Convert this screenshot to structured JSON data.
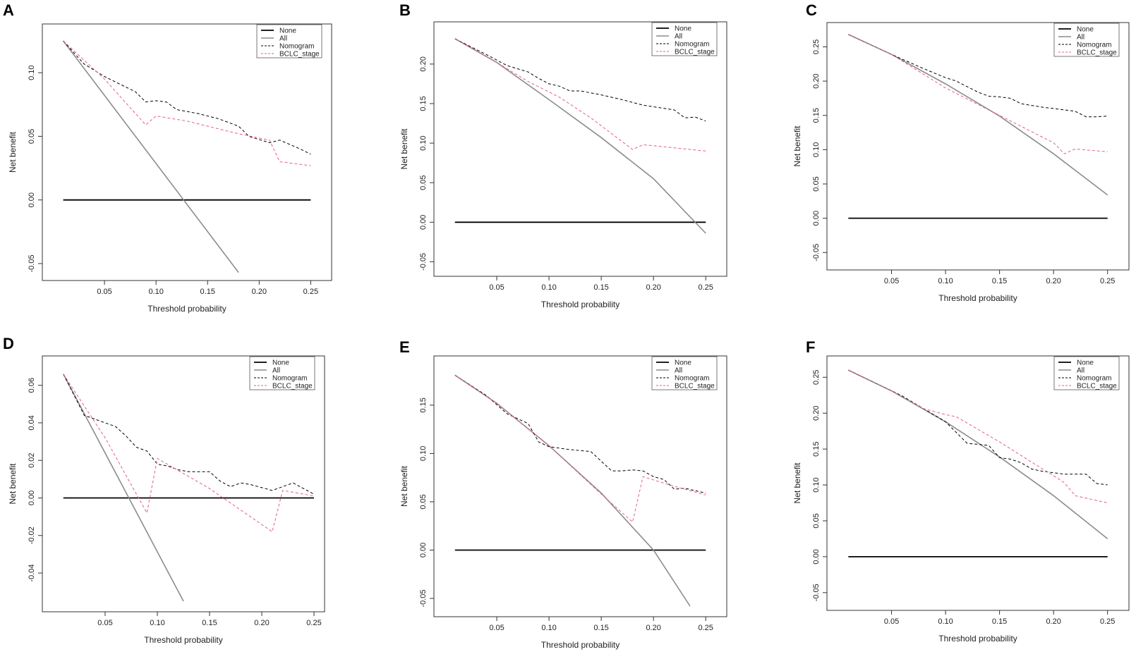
{
  "legend_labels": [
    "None",
    "All",
    "Nomogram",
    "BCLC_stage"
  ],
  "colors": {
    "none": "#000000",
    "all": "#8c8c8c",
    "nomogram": "#000000",
    "bclc": "#e8607a"
  },
  "chart_data": [
    {
      "panel": "A",
      "type": "line",
      "xlabel": "Threshold probability",
      "ylabel": "Net benefit",
      "xlim": [
        0.0,
        0.26
      ],
      "ylim": [
        -0.055,
        0.13
      ],
      "xticks": [
        "0.05",
        "0.10",
        "0.15",
        "0.20",
        "0.25"
      ],
      "yticks": [
        "-0.05",
        "0.00",
        "0.05",
        "0.10"
      ],
      "series": [
        {
          "name": "None",
          "x": [
            0.01,
            0.25
          ],
          "y": [
            0.0,
            0.0
          ]
        },
        {
          "name": "All",
          "x": [
            0.01,
            0.18
          ],
          "y": [
            0.125,
            -0.057
          ]
        },
        {
          "name": "Nomogram",
          "x": [
            0.01,
            0.03,
            0.05,
            0.07,
            0.08,
            0.09,
            0.1,
            0.11,
            0.12,
            0.14,
            0.16,
            0.18,
            0.19,
            0.21,
            0.22,
            0.24,
            0.25
          ],
          "y": [
            0.125,
            0.107,
            0.097,
            0.089,
            0.085,
            0.077,
            0.078,
            0.077,
            0.071,
            0.068,
            0.064,
            0.058,
            0.05,
            0.045,
            0.047,
            0.04,
            0.036
          ]
        },
        {
          "name": "BCLC_stage",
          "x": [
            0.01,
            0.05,
            0.09,
            0.1,
            0.13,
            0.18,
            0.21,
            0.22,
            0.25
          ],
          "y": [
            0.125,
            0.095,
            0.059,
            0.066,
            0.062,
            0.052,
            0.047,
            0.03,
            0.027
          ]
        }
      ]
    },
    {
      "panel": "B",
      "type": "line",
      "xlabel": "Threshold probability",
      "ylabel": "Net benefit",
      "xlim": [
        0.0,
        0.26
      ],
      "ylim": [
        -0.055,
        0.24
      ],
      "xticks": [
        "0.05",
        "0.10",
        "0.15",
        "0.20",
        "0.25"
      ],
      "yticks": [
        "-0.05",
        "0.00",
        "0.05",
        "0.10",
        "0.15",
        "0.20"
      ],
      "series": [
        {
          "name": "None",
          "x": [
            0.01,
            0.25
          ],
          "y": [
            0.0,
            0.0
          ]
        },
        {
          "name": "All",
          "x": [
            0.01,
            0.05,
            0.1,
            0.15,
            0.2,
            0.25
          ],
          "y": [
            0.232,
            0.202,
            0.155,
            0.107,
            0.055,
            -0.014
          ]
        },
        {
          "name": "Nomogram",
          "x": [
            0.01,
            0.04,
            0.06,
            0.08,
            0.09,
            0.1,
            0.11,
            0.12,
            0.13,
            0.15,
            0.17,
            0.19,
            0.21,
            0.22,
            0.23,
            0.24,
            0.25
          ],
          "y": [
            0.232,
            0.212,
            0.198,
            0.19,
            0.182,
            0.175,
            0.172,
            0.166,
            0.166,
            0.161,
            0.155,
            0.148,
            0.144,
            0.142,
            0.132,
            0.133,
            0.128
          ]
        },
        {
          "name": "BCLC_stage",
          "x": [
            0.01,
            0.05,
            0.08,
            0.11,
            0.14,
            0.18,
            0.19,
            0.25
          ],
          "y": [
            0.232,
            0.202,
            0.178,
            0.158,
            0.132,
            0.092,
            0.098,
            0.09
          ]
        }
      ]
    },
    {
      "panel": "C",
      "type": "line",
      "xlabel": "Threshold probability",
      "ylabel": "Net benefit",
      "xlim": [
        0.0,
        0.26
      ],
      "ylim": [
        -0.06,
        0.27
      ],
      "xticks": [
        "0.05",
        "0.10",
        "0.15",
        "0.20",
        "0.25"
      ],
      "yticks": [
        "-0.05",
        "0.00",
        "0.05",
        "0.10",
        "0.15",
        "0.20",
        "0.25"
      ],
      "series": [
        {
          "name": "None",
          "x": [
            0.01,
            0.25
          ],
          "y": [
            0.0,
            0.0
          ]
        },
        {
          "name": "All",
          "x": [
            0.01,
            0.05,
            0.1,
            0.15,
            0.2,
            0.25
          ],
          "y": [
            0.268,
            0.239,
            0.196,
            0.149,
            0.094,
            0.034
          ]
        },
        {
          "name": "Nomogram",
          "x": [
            0.01,
            0.05,
            0.08,
            0.1,
            0.11,
            0.13,
            0.14,
            0.15,
            0.16,
            0.17,
            0.19,
            0.21,
            0.22,
            0.23,
            0.24,
            0.25
          ],
          "y": [
            0.268,
            0.239,
            0.218,
            0.205,
            0.2,
            0.184,
            0.178,
            0.177,
            0.175,
            0.167,
            0.162,
            0.158,
            0.156,
            0.148,
            0.148,
            0.149
          ]
        },
        {
          "name": "BCLC_stage",
          "x": [
            0.01,
            0.05,
            0.1,
            0.15,
            0.2,
            0.21,
            0.22,
            0.25
          ],
          "y": [
            0.268,
            0.239,
            0.19,
            0.15,
            0.11,
            0.094,
            0.101,
            0.097
          ]
        }
      ]
    },
    {
      "panel": "D",
      "type": "line",
      "xlabel": "Threshold probability",
      "ylabel": "Net benefit",
      "xlim": [
        0.0,
        0.25
      ],
      "ylim": [
        -0.055,
        0.07
      ],
      "xticks": [
        "0.05",
        "0.10",
        "0.15",
        "0.20",
        "0.25"
      ],
      "yticks": [
        "-0.04",
        "-0.02",
        "0.00",
        "0.02",
        "0.04",
        "0.06"
      ],
      "series": [
        {
          "name": "None",
          "x": [
            0.01,
            0.25
          ],
          "y": [
            0.0,
            0.0
          ]
        },
        {
          "name": "All",
          "x": [
            0.01,
            0.125
          ],
          "y": [
            0.066,
            -0.055
          ]
        },
        {
          "name": "Nomogram",
          "x": [
            0.01,
            0.03,
            0.05,
            0.06,
            0.07,
            0.08,
            0.09,
            0.1,
            0.11,
            0.12,
            0.13,
            0.15,
            0.16,
            0.17,
            0.18,
            0.19,
            0.21,
            0.22,
            0.23,
            0.25
          ],
          "y": [
            0.066,
            0.044,
            0.04,
            0.038,
            0.033,
            0.027,
            0.025,
            0.018,
            0.017,
            0.015,
            0.014,
            0.014,
            0.009,
            0.006,
            0.008,
            0.007,
            0.004,
            0.006,
            0.008,
            0.002
          ]
        },
        {
          "name": "BCLC_stage",
          "x": [
            0.01,
            0.05,
            0.09,
            0.1,
            0.15,
            0.21,
            0.22,
            0.25
          ],
          "y": [
            0.066,
            0.032,
            -0.008,
            0.021,
            0.005,
            -0.018,
            0.004,
            0.001
          ]
        }
      ]
    },
    {
      "panel": "E",
      "type": "line",
      "xlabel": "Threshold probability",
      "ylabel": "Net benefit",
      "xlim": [
        0.0,
        0.26
      ],
      "ylim": [
        -0.058,
        0.19
      ],
      "xticks": [
        "0.05",
        "0.10",
        "0.15",
        "0.20",
        "0.25"
      ],
      "yticks": [
        "-0.05",
        "0.00",
        "0.05",
        "0.10",
        "0.15"
      ],
      "series": [
        {
          "name": "None",
          "x": [
            0.01,
            0.25
          ],
          "y": [
            0.0,
            0.0
          ]
        },
        {
          "name": "All",
          "x": [
            0.01,
            0.05,
            0.1,
            0.15,
            0.2,
            0.235
          ],
          "y": [
            0.181,
            0.152,
            0.108,
            0.059,
            0.0,
            -0.058
          ]
        },
        {
          "name": "Nomogram",
          "x": [
            0.01,
            0.04,
            0.06,
            0.08,
            0.09,
            0.1,
            0.12,
            0.14,
            0.15,
            0.16,
            0.17,
            0.18,
            0.19,
            0.2,
            0.21,
            0.22,
            0.23,
            0.25
          ],
          "y": [
            0.181,
            0.16,
            0.141,
            0.131,
            0.112,
            0.107,
            0.104,
            0.102,
            0.092,
            0.082,
            0.082,
            0.083,
            0.082,
            0.076,
            0.073,
            0.063,
            0.064,
            0.059
          ]
        },
        {
          "name": "BCLC_stage",
          "x": [
            0.01,
            0.05,
            0.1,
            0.15,
            0.18,
            0.19,
            0.22,
            0.25
          ],
          "y": [
            0.181,
            0.152,
            0.108,
            0.058,
            0.029,
            0.076,
            0.066,
            0.057
          ]
        }
      ]
    },
    {
      "panel": "F",
      "type": "line",
      "xlabel": "Threshold probability",
      "ylabel": "Net benefit",
      "xlim": [
        0.0,
        0.26
      ],
      "ylim": [
        -0.06,
        0.265
      ],
      "xticks": [
        "0.05",
        "0.10",
        "0.15",
        "0.20",
        "0.25"
      ],
      "yticks": [
        "-0.05",
        "0.00",
        "0.05",
        "0.10",
        "0.15",
        "0.20",
        "0.25"
      ],
      "series": [
        {
          "name": "None",
          "x": [
            0.01,
            0.25
          ],
          "y": [
            0.0,
            0.0
          ]
        },
        {
          "name": "All",
          "x": [
            0.01,
            0.05,
            0.1,
            0.15,
            0.2,
            0.25
          ],
          "y": [
            0.26,
            0.231,
            0.188,
            0.139,
            0.085,
            0.025
          ]
        },
        {
          "name": "Nomogram",
          "x": [
            0.01,
            0.06,
            0.08,
            0.1,
            0.12,
            0.14,
            0.15,
            0.16,
            0.17,
            0.18,
            0.19,
            0.2,
            0.21,
            0.23,
            0.24,
            0.25
          ],
          "y": [
            0.26,
            0.224,
            0.206,
            0.188,
            0.158,
            0.155,
            0.138,
            0.136,
            0.131,
            0.122,
            0.119,
            0.117,
            0.115,
            0.115,
            0.102,
            0.1
          ]
        },
        {
          "name": "BCLC_stage",
          "x": [
            0.01,
            0.05,
            0.08,
            0.1,
            0.11,
            0.15,
            0.19,
            0.2,
            0.21,
            0.22,
            0.25
          ],
          "y": [
            0.26,
            0.231,
            0.206,
            0.198,
            0.195,
            0.16,
            0.122,
            0.113,
            0.103,
            0.085,
            0.075
          ]
        }
      ]
    }
  ]
}
